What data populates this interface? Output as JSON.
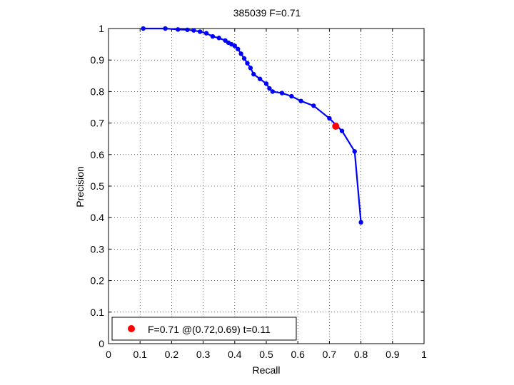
{
  "chart_data": {
    "type": "line",
    "title": "385039 F=0.71",
    "xlabel": "Recall",
    "ylabel": "Precision",
    "xlim": [
      0,
      1
    ],
    "ylim": [
      0,
      1
    ],
    "xticks": [
      "0",
      "0.1",
      "0.2",
      "0.3",
      "0.4",
      "0.5",
      "0.6",
      "0.7",
      "0.8",
      "0.9",
      "1"
    ],
    "yticks": [
      "0",
      "0.1",
      "0.2",
      "0.3",
      "0.4",
      "0.5",
      "0.6",
      "0.7",
      "0.8",
      "0.9",
      "1"
    ],
    "grid": true,
    "legend_position": "bottom-left",
    "series": [
      {
        "color": "#0000ff",
        "x": [
          0.11,
          0.18,
          0.22,
          0.25,
          0.27,
          0.29,
          0.31,
          0.33,
          0.35,
          0.37,
          0.38,
          0.39,
          0.4,
          0.41,
          0.42,
          0.43,
          0.44,
          0.45,
          0.46,
          0.48,
          0.5,
          0.51,
          0.52,
          0.55,
          0.58,
          0.61,
          0.65,
          0.7,
          0.74,
          0.78,
          0.8
        ],
        "y": [
          1.0,
          1.0,
          0.997,
          0.996,
          0.994,
          0.99,
          0.985,
          0.975,
          0.97,
          0.962,
          0.955,
          0.95,
          0.945,
          0.935,
          0.92,
          0.905,
          0.89,
          0.875,
          0.855,
          0.84,
          0.825,
          0.81,
          0.8,
          0.795,
          0.785,
          0.77,
          0.755,
          0.715,
          0.675,
          0.61,
          0.385
        ]
      }
    ],
    "best_point": {
      "recall": 0.72,
      "precision": 0.69,
      "color": "#ff0000"
    },
    "legend": {
      "label": "F=0.71 @(0.72,0.69) t=0.11"
    }
  }
}
